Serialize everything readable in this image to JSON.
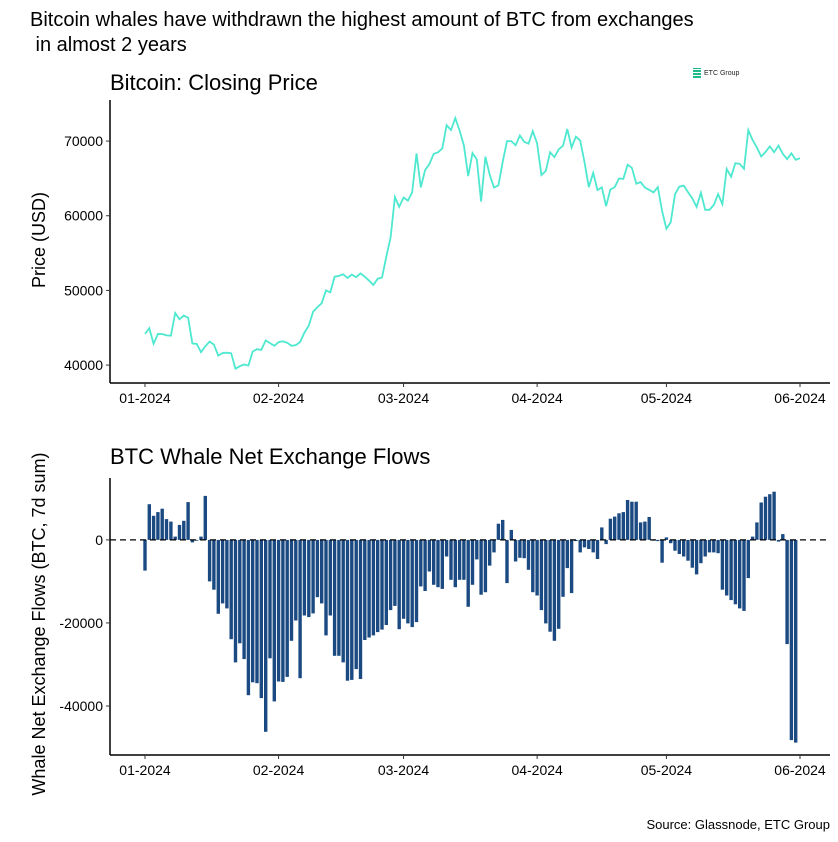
{
  "title": "Bitcoin whales have withdrawn the highest amount of BTC from exchanges\n in almost 2 years",
  "logo_text": "ETC Group",
  "source": "Source: Glassnode, ETC Group",
  "colors": {
    "price_line": "#4de8cf",
    "bars": "#1b4a82",
    "logo": "#1fb98a"
  },
  "chart_data": [
    {
      "type": "line",
      "title": "Bitcoin: Closing Price",
      "xlabel": "",
      "ylabel": "Price (USD)",
      "x_start": "2024-01-01",
      "x_frequency": "daily",
      "x_ticks": [
        "01-2024",
        "02-2024",
        "03-2024",
        "04-2024",
        "05-2024",
        "06-2024"
      ],
      "y_ticks": [
        40000,
        50000,
        60000,
        70000
      ],
      "ylim": [
        37600,
        75500
      ],
      "grid": false,
      "values": [
        44180,
        44950,
        42850,
        44180,
        44160,
        43970,
        43930,
        46970,
        46130,
        46630,
        46340,
        42890,
        42850,
        41730,
        42510,
        43150,
        42740,
        41260,
        41620,
        41660,
        41580,
        39510,
        39850,
        40080,
        39930,
        41820,
        42120,
        42030,
        43300,
        42940,
        42580,
        43080,
        43190,
        42990,
        42580,
        42660,
        43090,
        44340,
        45290,
        47150,
        47770,
        48290,
        50000,
        49740,
        51830,
        51940,
        52160,
        51660,
        52120,
        51780,
        52280,
        51840,
        51300,
        50730,
        51570,
        51730,
        54520,
        57090,
        62500,
        61200,
        62440,
        62030,
        63170,
        68330,
        63800,
        66110,
        66930,
        68300,
        68500,
        69020,
        72120,
        71480,
        73080,
        71400,
        69400,
        65310,
        68390,
        67550,
        61910,
        67910,
        65490,
        63780,
        64060,
        67230,
        69990,
        69990,
        69450,
        70740,
        69900,
        69650,
        71330,
        69700,
        65450,
        66000,
        68500,
        67850,
        68900,
        69360,
        71620,
        69140,
        70590,
        70060,
        67190,
        63820,
        65740,
        63430,
        63810,
        61280,
        63510,
        63840,
        64990,
        64930,
        66840,
        66410,
        64290,
        64500,
        63770,
        63460,
        63120,
        63840,
        60640,
        58250,
        59120,
        62890,
        63890,
        64030,
        63160,
        62330,
        61190,
        63080,
        60790,
        60790,
        61450,
        62900,
        61550,
        66270,
        65230,
        67050,
        66940,
        66280,
        71450,
        70140,
        69120,
        67930,
        68530,
        69290,
        68510,
        69390,
        68300,
        67590,
        68360,
        67490,
        67710
      ]
    },
    {
      "type": "bar",
      "title": "BTC Whale Net Exchange Flows",
      "xlabel": "",
      "ylabel": "Whale Net Exchange Flows (BTC, 7d sum)",
      "x_start": "2024-01-01",
      "x_frequency": "daily",
      "x_ticks": [
        "01-2024",
        "02-2024",
        "03-2024",
        "04-2024",
        "05-2024",
        "06-2024"
      ],
      "y_ticks": [
        -40000,
        -20000,
        0
      ],
      "ylim": [
        -51800,
        14900
      ],
      "reference_line": {
        "y": 0,
        "style": "dashed"
      },
      "grid": false,
      "values": [
        -7400,
        8600,
        5800,
        6700,
        7500,
        5000,
        4400,
        800,
        3600,
        4600,
        9100,
        -600,
        -200,
        800,
        10600,
        -10000,
        -12000,
        -17800,
        -15300,
        -16500,
        -23900,
        -29500,
        -24900,
        -28700,
        -37400,
        -34300,
        -34500,
        -38100,
        -46200,
        -28500,
        -38900,
        -34100,
        -34200,
        -33000,
        -24300,
        -19400,
        -33300,
        -18200,
        -18600,
        -17700,
        -13800,
        -15300,
        -23000,
        -18200,
        -27900,
        -27900,
        -29500,
        -33900,
        -33700,
        -31100,
        -33500,
        -24100,
        -23500,
        -23000,
        -22200,
        -21600,
        -20500,
        -16900,
        -15900,
        -21500,
        -19000,
        -20100,
        -21000,
        -19800,
        -11200,
        -12300,
        -7600,
        -10800,
        -11400,
        -11800,
        -4000,
        -9600,
        -11400,
        -9600,
        -9600,
        -16100,
        -10800,
        -4700,
        -13200,
        -12600,
        -6200,
        -3000,
        3900,
        4800,
        -10400,
        2400,
        -5200,
        -4300,
        -4400,
        -7200,
        -12600,
        -13400,
        -16900,
        -20100,
        -22100,
        -24300,
        -21400,
        -13700,
        -6800,
        -12800,
        -300,
        -3000,
        -1800,
        -2200,
        -3000,
        -4600,
        3000,
        -1000,
        5100,
        5600,
        6400,
        6700,
        9600,
        9200,
        9200,
        4200,
        4400,
        5500,
        -200,
        -300,
        -5500,
        600,
        -800,
        -2600,
        -3400,
        -4000,
        -5000,
        -6700,
        -8300,
        -5600,
        -4000,
        -3000,
        -3000,
        -3200,
        -12000,
        -13400,
        -14500,
        -15500,
        -16500,
        -17100,
        -9200,
        800,
        4200,
        9000,
        10400,
        11000,
        11600,
        -400,
        1400,
        -25100,
        -48200,
        -48800
      ]
    }
  ]
}
